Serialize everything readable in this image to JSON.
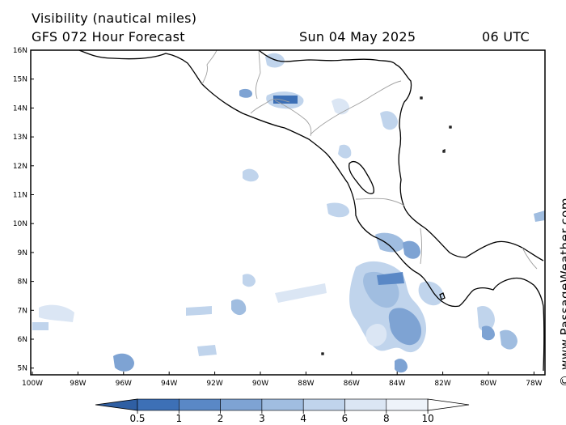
{
  "header": {
    "title": "Visibility (nautical miles)",
    "model": "GFS 072 Hour Forecast",
    "date": "Sun 04 May 2025",
    "time": "06 UTC"
  },
  "credit": "© www.PassageWeather.com",
  "lat_labels": [
    "16N",
    "15N",
    "14N",
    "13N",
    "12N",
    "11N",
    "10N",
    "9N",
    "8N",
    "7N",
    "6N",
    "5N"
  ],
  "lon_labels": [
    "100W",
    "98W",
    "96W",
    "94W",
    "92W",
    "90W",
    "88W",
    "86W",
    "84W",
    "82W",
    "80W",
    "78W"
  ],
  "colorbar": {
    "labels": [
      "0.5",
      "1",
      "2",
      "3",
      "4",
      "6",
      "8",
      "10"
    ],
    "colors": [
      "#3d70b6",
      "#5a88c6",
      "#7ea3d3",
      "#a0bde0",
      "#c0d4ec",
      "#dbe6f4",
      "#eef3fa",
      "#ffffff"
    ]
  },
  "palette": {
    "land_outline": "#000000",
    "border": "#a0a0a0",
    "sea": "#ffffff"
  }
}
